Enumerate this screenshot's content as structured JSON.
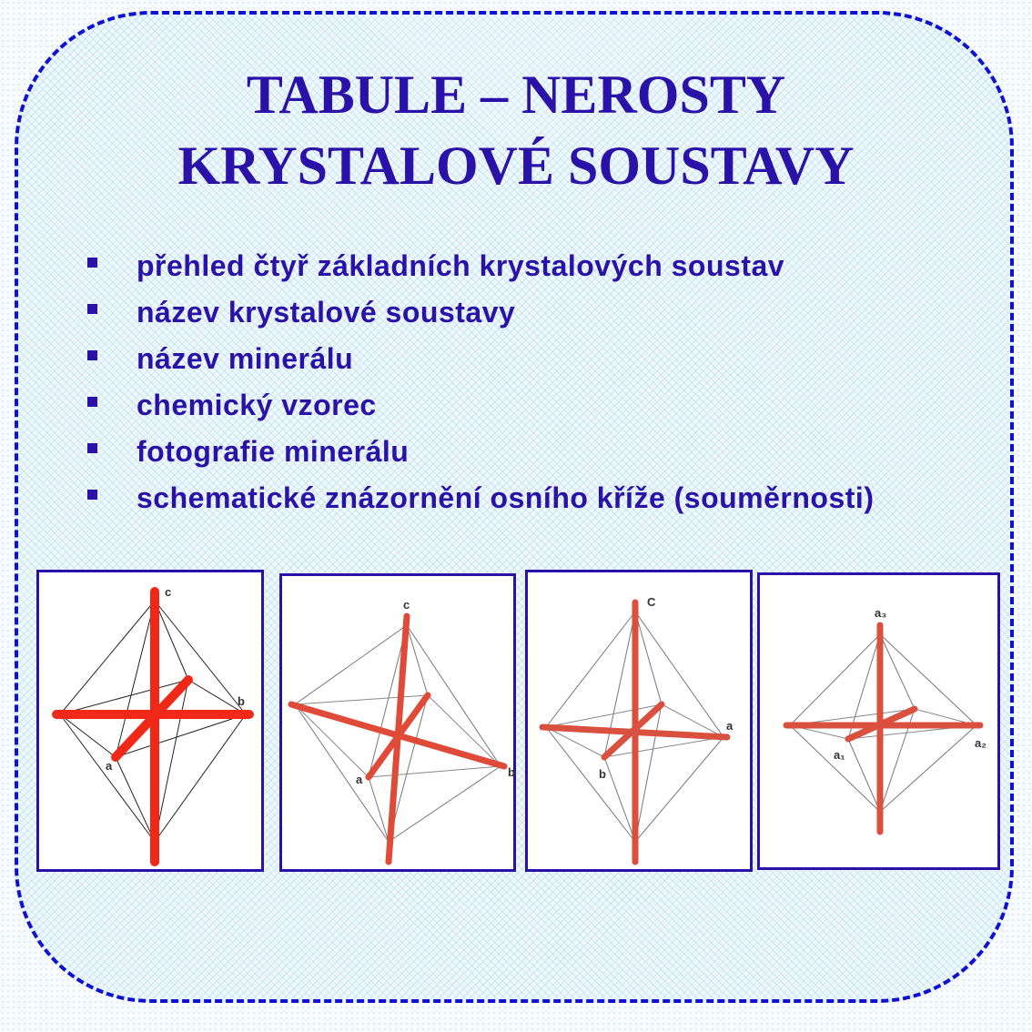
{
  "title": {
    "line1": "TABULE – NEROSTY",
    "line2": "KRYSTALOVÉ SOUSTAVY"
  },
  "bullets": [
    "přehled čtyř základních krystalových soustav",
    "název krystalové soustavy",
    "název minerálu",
    "chemický vzorec",
    "fotografie minerálu",
    "schematické znázornění osního kříže (souměrnosti)"
  ],
  "diagrams": [
    {
      "labels": {
        "vertical": "c",
        "horizontal": "b",
        "diagonal": "a"
      }
    },
    {
      "labels": {
        "vertical": "c",
        "horizontal": "b",
        "diagonal": "a"
      }
    },
    {
      "labels": {
        "vertical": "C",
        "horizontal": "a",
        "diagonal": "b"
      }
    },
    {
      "labels": {
        "vertical": "a₃",
        "horizontal": "a₂",
        "diagonal": "a₁"
      }
    }
  ],
  "colors": {
    "text": "#2a12a8",
    "border": "#1010d0",
    "axis": "#e0301e"
  }
}
